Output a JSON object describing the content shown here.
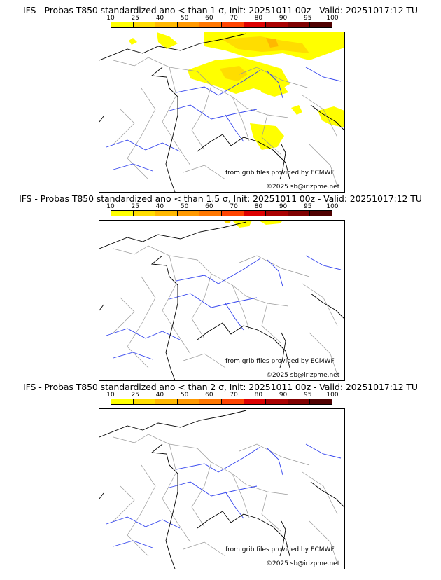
{
  "legend": {
    "ticks": [
      "10",
      "25",
      "40",
      "50",
      "60",
      "70",
      "80",
      "90",
      "95",
      "100"
    ],
    "colors": [
      "#ffff00",
      "#ffdd00",
      "#ffb800",
      "#ff9900",
      "#ff7700",
      "#ff4400",
      "#dd0000",
      "#aa0000",
      "#800000",
      "#500000"
    ]
  },
  "panels": [
    {
      "title": "IFS - Probas T850  standardized ano < than 1 σ, Init: 20251011 00z - Valid: 20251017:12 TU",
      "credit": "from grib files provided by ECMWF",
      "copyright": "©2025 sb@irizpme.net"
    },
    {
      "title": "IFS - Probas T850  standardized ano < than 1.5 σ, Init: 20251011 00z - Valid: 20251017:12 TU",
      "credit": "from grib files provided by ECMWF",
      "copyright": "©2025 sb@irizpme.net"
    },
    {
      "title": "IFS - Probas T850  standardized ano < than 2 σ, Init: 20251011 00z - Valid: 20251017:12 TU",
      "credit": "from grib files provided by ECMWF",
      "copyright": "©2025 sb@irizpme.net"
    }
  ]
}
